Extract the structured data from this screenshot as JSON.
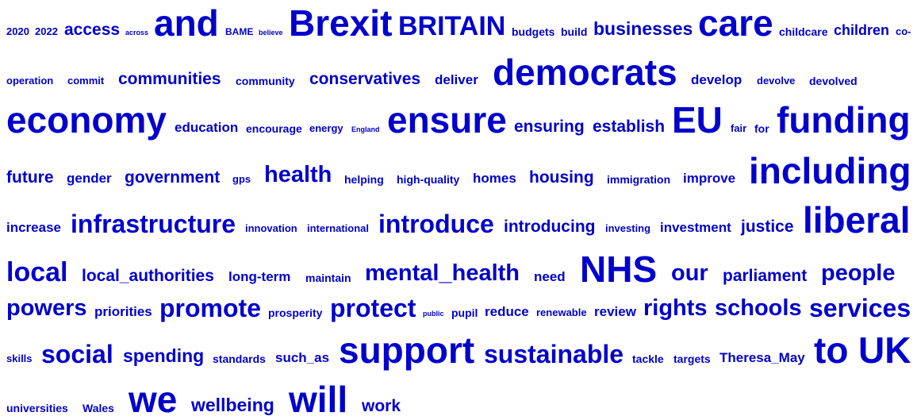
{
  "style": {
    "text_color": "#0000cc",
    "background": "#ffffff"
  },
  "words": [
    {
      "text": "2020",
      "size": 12
    },
    {
      "text": "2022",
      "size": 12
    },
    {
      "text": "access",
      "size": 20
    },
    {
      "text": "across",
      "size": 9
    },
    {
      "text": "and",
      "size": 44
    },
    {
      "text": "BAME",
      "size": 11
    },
    {
      "text": "believe",
      "size": 9
    },
    {
      "text": "Brexit",
      "size": 44
    },
    {
      "text": "BRITAIN",
      "size": 32
    },
    {
      "text": "budgets",
      "size": 13
    },
    {
      "text": "build",
      "size": 13
    },
    {
      "text": "businesses",
      "size": 22
    },
    {
      "text": "care",
      "size": 44
    },
    {
      "text": "childcare",
      "size": 13
    },
    {
      "text": "children",
      "size": 17
    },
    {
      "text": "co-",
      "size": 12
    },
    {
      "text": "operation",
      "size": 12
    },
    {
      "text": "commit",
      "size": 12
    },
    {
      "text": "communities",
      "size": 20
    },
    {
      "text": "community",
      "size": 13
    },
    {
      "text": "conservatives",
      "size": 20
    },
    {
      "text": "deliver",
      "size": 16
    },
    {
      "text": "democrats",
      "size": 44
    },
    {
      "text": "develop",
      "size": 16
    },
    {
      "text": "devolve",
      "size": 12
    },
    {
      "text": "devolved",
      "size": 13
    },
    {
      "text": "economy",
      "size": 44
    },
    {
      "text": "education",
      "size": 16
    },
    {
      "text": "encourage",
      "size": 13
    },
    {
      "text": "energy",
      "size": 12
    },
    {
      "text": "England",
      "size": 9
    },
    {
      "text": "ensure",
      "size": 44
    },
    {
      "text": "ensuring",
      "size": 20
    },
    {
      "text": "establish",
      "size": 20
    },
    {
      "text": "EU",
      "size": 44
    },
    {
      "text": "fair",
      "size": 12
    },
    {
      "text": "for",
      "size": 13
    },
    {
      "text": "funding",
      "size": 44
    },
    {
      "text": "future",
      "size": 20
    },
    {
      "text": "gender",
      "size": 16
    },
    {
      "text": "government",
      "size": 20
    },
    {
      "text": "gps",
      "size": 12
    },
    {
      "text": "health",
      "size": 28
    },
    {
      "text": "helping",
      "size": 13
    },
    {
      "text": "high-quality",
      "size": 13
    },
    {
      "text": "homes",
      "size": 16
    },
    {
      "text": "housing",
      "size": 20
    },
    {
      "text": "immigration",
      "size": 13
    },
    {
      "text": "improve",
      "size": 16
    },
    {
      "text": "including",
      "size": 44
    },
    {
      "text": "increase",
      "size": 16
    },
    {
      "text": "infrastructure",
      "size": 30
    },
    {
      "text": "innovation",
      "size": 12
    },
    {
      "text": "international",
      "size": 12
    },
    {
      "text": "introduce",
      "size": 30
    },
    {
      "text": "introducing",
      "size": 20
    },
    {
      "text": "investing",
      "size": 12
    },
    {
      "text": "investment",
      "size": 16
    },
    {
      "text": "justice",
      "size": 20
    },
    {
      "text": "liberal",
      "size": 44
    },
    {
      "text": "local",
      "size": 32
    },
    {
      "text": "local_authorities",
      "size": 20
    },
    {
      "text": "long-term",
      "size": 16
    },
    {
      "text": "maintain",
      "size": 13
    },
    {
      "text": "mental_health",
      "size": 28
    },
    {
      "text": "need",
      "size": 16
    },
    {
      "text": "NHS",
      "size": 44
    },
    {
      "text": "our",
      "size": 28
    },
    {
      "text": "parliament",
      "size": 20
    },
    {
      "text": "people",
      "size": 28
    },
    {
      "text": "powers",
      "size": 28
    },
    {
      "text": "priorities",
      "size": 16
    },
    {
      "text": "promote",
      "size": 30
    },
    {
      "text": "prosperity",
      "size": 13
    },
    {
      "text": "protect",
      "size": 30
    },
    {
      "text": "public",
      "size": 9
    },
    {
      "text": "pupil",
      "size": 13
    },
    {
      "text": "reduce",
      "size": 16
    },
    {
      "text": "renewable",
      "size": 12
    },
    {
      "text": "review",
      "size": 16
    },
    {
      "text": "rights",
      "size": 28
    },
    {
      "text": "schools",
      "size": 28
    },
    {
      "text": "services",
      "size": 30
    },
    {
      "text": "skills",
      "size": 12
    },
    {
      "text": "social",
      "size": 30
    },
    {
      "text": "spending",
      "size": 22
    },
    {
      "text": "standards",
      "size": 13
    },
    {
      "text": "such_as",
      "size": 16
    },
    {
      "text": "support",
      "size": 44
    },
    {
      "text": "sustainable",
      "size": 30
    },
    {
      "text": "tackle",
      "size": 13
    },
    {
      "text": "targets",
      "size": 13
    },
    {
      "text": "Theresa_May",
      "size": 16
    },
    {
      "text": "to",
      "size": 44
    },
    {
      "text": "UK",
      "size": 44
    },
    {
      "text": "universities",
      "size": 13
    },
    {
      "text": "Wales",
      "size": 13
    },
    {
      "text": "we",
      "size": 44
    },
    {
      "text": "wellbeing",
      "size": 22
    },
    {
      "text": "will",
      "size": 44
    },
    {
      "text": "work",
      "size": 20
    }
  ]
}
